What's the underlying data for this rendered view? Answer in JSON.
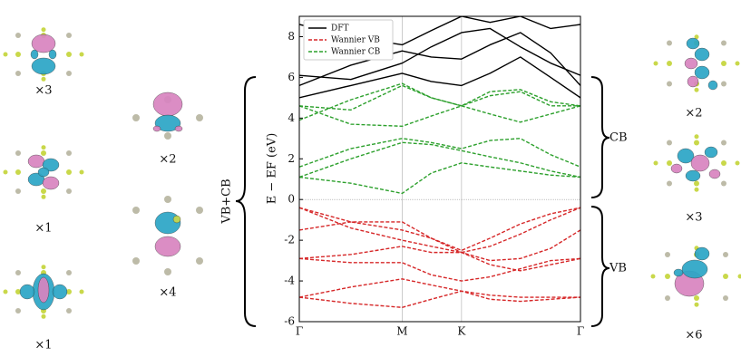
{
  "chart_data": {
    "type": "line",
    "ylabel": "E − EF (eV)",
    "x": [
      0,
      0.289,
      0.577,
      0.74,
      0.91,
      1.07,
      1.24,
      1.41,
      1.577
    ],
    "xlim": [
      0,
      1.577
    ],
    "xticks": [
      {
        "value": 0,
        "label": "Γ"
      },
      {
        "value": 0.577,
        "label": "M"
      },
      {
        "value": 0.91,
        "label": "K"
      },
      {
        "value": 1.577,
        "label": "Γ"
      }
    ],
    "ylim": [
      -6,
      9
    ],
    "yticks": [
      -6,
      -4,
      -2,
      0,
      2,
      4,
      6,
      8
    ],
    "grid": true,
    "legend": "upper left",
    "series": [
      {
        "name": "DFT",
        "color": "#000000",
        "dashed": false,
        "bands": [
          [
            5.0,
            5.6,
            6.2,
            5.8,
            5.6,
            6.2,
            7.0,
            6.0,
            5.0
          ],
          [
            5.6,
            6.6,
            7.3,
            7.0,
            6.9,
            7.6,
            8.2,
            7.2,
            5.6
          ],
          [
            6.1,
            5.9,
            6.7,
            7.5,
            8.2,
            8.4,
            7.5,
            6.7,
            6.1
          ],
          [
            8.6,
            8.0,
            7.6,
            8.3,
            9.0,
            8.7,
            9.0,
            8.4,
            8.6
          ]
        ]
      },
      {
        "name": "Wannier VB",
        "color": "#d62728",
        "dashed": true,
        "bands": [
          [
            -0.4,
            -1.1,
            -1.5,
            -1.9,
            -2.5,
            -1.9,
            -1.2,
            -0.7,
            -0.4
          ],
          [
            -0.4,
            -1.4,
            -2.0,
            -2.3,
            -2.6,
            -2.3,
            -1.7,
            -1.0,
            -0.4
          ],
          [
            -1.5,
            -1.1,
            -1.1,
            -1.9,
            -2.6,
            -3.0,
            -2.9,
            -2.4,
            -1.5
          ],
          [
            -2.9,
            -2.7,
            -2.3,
            -2.6,
            -2.6,
            -3.2,
            -3.5,
            -3.2,
            -2.9
          ],
          [
            -2.9,
            -3.1,
            -3.1,
            -3.7,
            -4.0,
            -3.8,
            -3.4,
            -3.0,
            -2.9
          ],
          [
            -4.8,
            -4.3,
            -3.9,
            -4.2,
            -4.5,
            -4.7,
            -4.8,
            -4.8,
            -4.8
          ],
          [
            -4.8,
            -5.1,
            -5.3,
            -4.9,
            -4.5,
            -4.9,
            -5.0,
            -4.9,
            -4.8
          ]
        ]
      },
      {
        "name": "Wannier CB",
        "color": "#2ca02c",
        "dashed": true,
        "bands": [
          [
            1.1,
            0.8,
            0.3,
            1.3,
            1.8,
            1.6,
            1.4,
            1.2,
            1.1
          ],
          [
            1.1,
            2.0,
            2.8,
            2.7,
            2.4,
            2.1,
            1.8,
            1.4,
            1.1
          ],
          [
            1.6,
            2.5,
            3.0,
            2.8,
            2.5,
            2.9,
            3.0,
            2.2,
            1.6
          ],
          [
            4.6,
            4.4,
            5.6,
            5.0,
            4.6,
            5.1,
            5.3,
            4.6,
            4.6
          ],
          [
            4.6,
            3.7,
            3.6,
            4.1,
            4.6,
            4.2,
            3.8,
            4.2,
            4.6
          ],
          [
            3.9,
            4.9,
            5.7,
            5.0,
            4.6,
            5.3,
            5.4,
            4.8,
            4.6
          ]
        ]
      }
    ],
    "brace_labels": [
      "VB+CB",
      "CB",
      "VB"
    ],
    "multiplicities": [
      "×3",
      "×1",
      "×1",
      "×2",
      "×4",
      "×2",
      "×3",
      "×6"
    ]
  }
}
